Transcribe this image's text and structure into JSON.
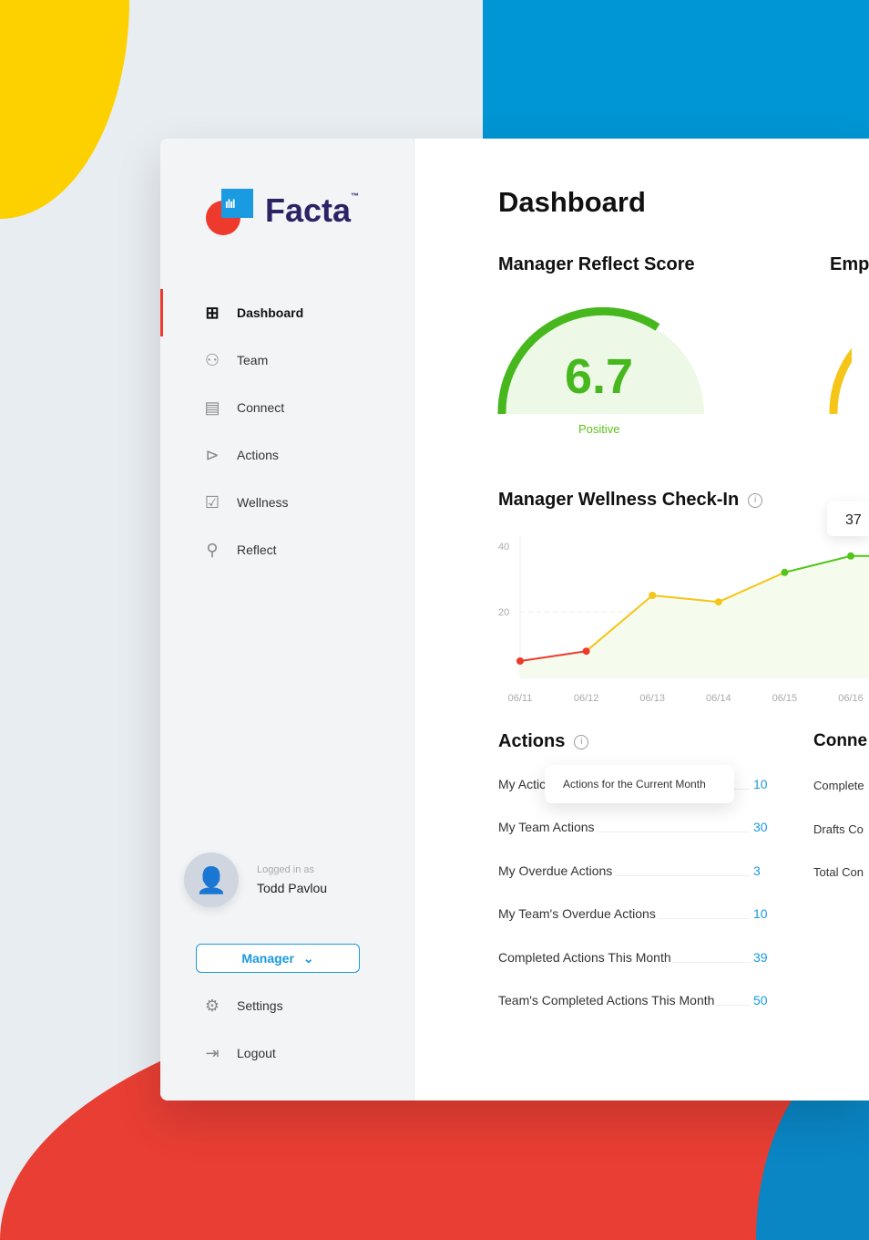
{
  "brand": {
    "name": "Facta",
    "tm": "™"
  },
  "sidebar": {
    "items": [
      {
        "label": "Dashboard",
        "icon": "grid-icon",
        "active": true
      },
      {
        "label": "Team",
        "icon": "team-icon"
      },
      {
        "label": "Connect",
        "icon": "document-icon"
      },
      {
        "label": "Actions",
        "icon": "play-circle-icon"
      },
      {
        "label": "Wellness",
        "icon": "checkbox-icon"
      },
      {
        "label": "Reflect",
        "icon": "user-check-icon"
      }
    ],
    "user": {
      "logged_in_label": "Logged in as",
      "name": "Todd Pavlou"
    },
    "role": "Manager",
    "bottom": [
      {
        "label": "Settings",
        "icon": "gear-icon"
      },
      {
        "label": "Logout",
        "icon": "logout-icon"
      }
    ]
  },
  "main": {
    "title": "Dashboard",
    "reflect": {
      "title": "Manager Reflect Score",
      "score": "6.7",
      "label": "Positive",
      "color": "#46b81e",
      "fraction": 0.67
    },
    "employee_title": "Emp",
    "wellness": {
      "title": "Manager Wellness Check-In",
      "tooltip": "37"
    },
    "actions": {
      "title": "Actions",
      "tooltip": "Actions for the Current Month",
      "rows": [
        {
          "label": "My Actic",
          "value": "10"
        },
        {
          "label": "My Team Actions",
          "value": "30"
        },
        {
          "label": "My Overdue Actions",
          "value": "3"
        },
        {
          "label": "My Team's Overdue Actions",
          "value": "10"
        },
        {
          "label": "Completed Actions This Month",
          "value": "39"
        },
        {
          "label": "Team's Completed Actions This Month",
          "value": "50"
        }
      ]
    },
    "connect": {
      "title": "Conne",
      "rows": [
        "Complete",
        "Drafts Co",
        "Total Con"
      ]
    }
  },
  "chart_data": {
    "type": "line",
    "title": "Manager Wellness Check-In",
    "x": [
      "06/11",
      "06/12",
      "06/13",
      "06/14",
      "06/15",
      "06/16"
    ],
    "values": [
      5,
      8,
      25,
      23,
      32,
      37
    ],
    "yticks": [
      "20",
      "40"
    ],
    "ylim": [
      0,
      40
    ],
    "grid": true,
    "colors": {
      "low": "#ee3a2c",
      "mid": "#f5c518",
      "high": "#52c41a"
    }
  }
}
